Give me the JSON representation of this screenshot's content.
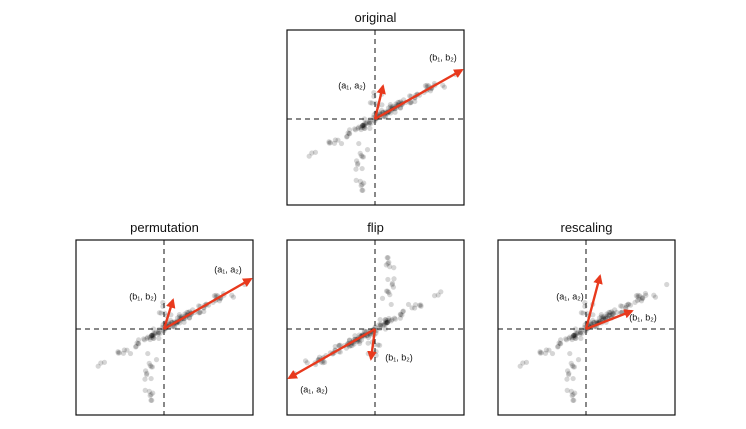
{
  "panels": [
    {
      "title": "original",
      "arrow_labels": {
        "a": "(a₁, a₂)",
        "b": "(b₁, b₂)"
      }
    },
    {
      "title": "permutation",
      "arrow_labels": {
        "a": "(a₁, a₂)",
        "b": "(b₁, b₂)"
      }
    },
    {
      "title": "flip",
      "arrow_labels": {
        "a": "(a₁, a₂)",
        "b": "(b₁, b₂)"
      }
    },
    {
      "title": "rescaling",
      "arrow_labels": {
        "a": "(a₁, a₂)",
        "b": "(b₁, b₂)"
      }
    }
  ]
}
